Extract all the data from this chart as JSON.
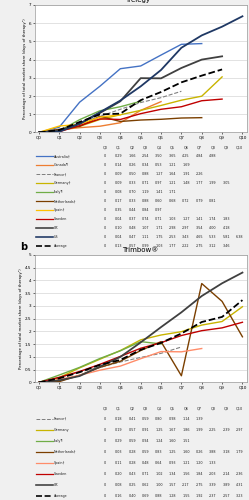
{
  "panel_a": {
    "title": "Trelegy™",
    "ylabel": "Percentage of total market share (days of therapy¹)",
    "ylim": [
      0,
      7
    ],
    "yticks": [
      0,
      1,
      2,
      3,
      4,
      5,
      6,
      7
    ],
    "quarters": [
      "Q0",
      "Q1",
      "Q2",
      "Q3",
      "Q4",
      "Q5",
      "Q6",
      "Q7",
      "Q8",
      "Q9",
      "Q10"
    ],
    "series": [
      {
        "label": "Australia†",
        "color": "#4472C4",
        "linestyle": "-",
        "linewidth": 1.0,
        "data": [
          0,
          0.29,
          1.66,
          2.54,
          3.5,
          3.65,
          4.25,
          4.84,
          4.88,
          null,
          null
        ]
      },
      {
        "label": "Canada¶",
        "color": "#ED7D31",
        "linestyle": "-",
        "linewidth": 1.0,
        "data": [
          0,
          0.14,
          0.26,
          0.34,
          0.53,
          1.21,
          1.69,
          null,
          null,
          null,
          null
        ]
      },
      {
        "label": "France†",
        "color": "#808080",
        "linestyle": "--",
        "linewidth": 0.8,
        "data": [
          0,
          0.09,
          0.5,
          0.88,
          1.27,
          1.64,
          1.91,
          2.26,
          null,
          null,
          null
        ]
      },
      {
        "label": "Germany†",
        "color": "#C8B400",
        "linestyle": "-",
        "linewidth": 1.0,
        "data": [
          0,
          0.09,
          0.33,
          0.71,
          0.97,
          1.21,
          1.48,
          1.77,
          1.99,
          3.05,
          null
        ]
      },
      {
        "label": "Italy¶",
        "color": "#70AD47",
        "linestyle": "-",
        "linewidth": 1.0,
        "data": [
          0,
          0.08,
          0.7,
          1.19,
          1.41,
          1.71,
          null,
          null,
          null,
          null,
          null
        ]
      },
      {
        "label": "Netherlands†",
        "color": "#7B3F00",
        "linestyle": "-",
        "linewidth": 1.0,
        "data": [
          0,
          0.17,
          0.33,
          0.88,
          0.6,
          0.68,
          0.72,
          0.79,
          0.81,
          null,
          null
        ]
      },
      {
        "label": "Spain†",
        "color": "#FFC000",
        "linestyle": "-",
        "linewidth": 1.0,
        "data": [
          0,
          0.35,
          0.44,
          0.84,
          0.97,
          null,
          null,
          null,
          null,
          null,
          null
        ]
      },
      {
        "label": "Sweden",
        "color": "#C00000",
        "linestyle": "-",
        "linewidth": 1.0,
        "data": [
          0,
          0.04,
          0.37,
          0.74,
          0.71,
          1.03,
          1.27,
          1.41,
          1.74,
          1.83,
          null
        ]
      },
      {
        "label": "UK",
        "color": "#404040",
        "linestyle": "-",
        "linewidth": 1.3,
        "data": [
          0,
          0.1,
          0.48,
          1.07,
          1.71,
          2.98,
          2.97,
          3.54,
          4.0,
          4.18,
          null
        ]
      },
      {
        "label": "US",
        "color": "#1F3864",
        "linestyle": "-",
        "linewidth": 1.3,
        "data": [
          0,
          0.04,
          0.47,
          1.11,
          1.75,
          2.53,
          3.43,
          4.65,
          5.33,
          5.81,
          6.38
        ]
      },
      {
        "label": "Average",
        "color": "#000000",
        "linestyle": "--",
        "linewidth": 1.3,
        "data": [
          0,
          0.13,
          0.57,
          0.99,
          1.03,
          1.77,
          2.22,
          2.75,
          3.12,
          3.46,
          null
        ]
      }
    ]
  },
  "panel_b": {
    "title": "Trimbow®",
    "ylabel": "Percentage of total market share (days of therapy¹)",
    "ylim": [
      0,
      5
    ],
    "yticks": [
      0,
      0.5,
      1.0,
      1.5,
      2.0,
      2.5,
      3.0,
      3.5,
      4.0,
      4.5,
      5.0
    ],
    "ytick_labels": [
      "0",
      "0.5",
      "1",
      "1.5",
      "2",
      "2.5",
      "3",
      "3.5",
      "4",
      "4.5",
      "5"
    ],
    "quarters": [
      "Q0",
      "Q1",
      "Q2",
      "Q3",
      "Q4",
      "Q5",
      "Q6",
      "Q7",
      "Q8",
      "Q9",
      "Q10"
    ],
    "series": [
      {
        "label": "France†",
        "color": "#808080",
        "linestyle": "--",
        "linewidth": 0.8,
        "data": [
          0,
          0.18,
          0.41,
          0.59,
          0.8,
          0.98,
          1.14,
          1.39,
          null,
          null,
          null
        ]
      },
      {
        "label": "Germany",
        "color": "#C8B400",
        "linestyle": "-",
        "linewidth": 1.0,
        "data": [
          0,
          0.19,
          0.57,
          0.91,
          1.25,
          1.67,
          1.86,
          1.99,
          2.25,
          2.39,
          2.97
        ]
      },
      {
        "label": "Italy¶",
        "color": "#70AD47",
        "linestyle": "-",
        "linewidth": 1.0,
        "data": [
          0,
          0.29,
          0.59,
          0.94,
          1.24,
          1.6,
          1.51,
          null,
          null,
          null,
          null
        ]
      },
      {
        "label": "Netherlands†",
        "color": "#7B3F00",
        "linestyle": "-",
        "linewidth": 1.0,
        "data": [
          0,
          0.03,
          0.28,
          0.59,
          0.83,
          1.25,
          1.6,
          0.26,
          3.88,
          3.18,
          1.79
        ]
      },
      {
        "label": "Spain†",
        "color": "#FF8C69",
        "linestyle": "-",
        "linewidth": 1.0,
        "data": [
          0,
          0.11,
          0.28,
          0.48,
          0.64,
          0.93,
          1.21,
          1.2,
          1.33,
          null,
          null
        ]
      },
      {
        "label": "Sweden",
        "color": "#C00000",
        "linestyle": "-",
        "linewidth": 1.0,
        "data": [
          0,
          0.2,
          0.43,
          0.71,
          1.02,
          1.34,
          1.56,
          1.84,
          2.03,
          2.14,
          2.36
        ]
      },
      {
        "label": "UK",
        "color": "#404040",
        "linestyle": "-",
        "linewidth": 1.3,
        "data": [
          0,
          0.08,
          0.25,
          0.62,
          1.0,
          1.57,
          2.17,
          2.75,
          3.39,
          3.89,
          4.31
        ]
      },
      {
        "label": "Average",
        "color": "#000000",
        "linestyle": "--",
        "linewidth": 1.3,
        "data": [
          0,
          0.16,
          0.4,
          0.69,
          0.88,
          1.28,
          1.55,
          1.92,
          2.37,
          2.57,
          3.23
        ]
      }
    ]
  },
  "fig_background": "#F0F0F0",
  "panel_background": "#FFFFFF"
}
